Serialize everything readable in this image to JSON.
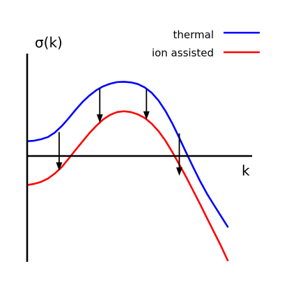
{
  "chart_data": {
    "type": "line",
    "title": "",
    "xlabel": "k",
    "ylabel": "σ(k)",
    "grid": false,
    "legend_position": "top-right",
    "colors": {
      "axis": "#000000",
      "thermal": "#0000ff",
      "ion_assisted": "#ff0000",
      "arrow": "#000000"
    },
    "x": [
      0.0,
      0.4,
      0.8,
      1.2,
      1.6,
      2.0,
      2.4,
      2.8,
      3.2,
      3.6,
      4.0,
      4.4,
      4.8,
      5.2,
      5.6,
      6.0,
      6.4,
      6.8,
      7.2,
      7.6,
      8.0,
      8.4,
      8.8,
      9.2,
      9.6,
      10.0,
      10.4,
      10.8,
      11.2,
      11.6
    ],
    "series": [
      {
        "name": "thermal",
        "values": [
          0.0,
          0.02,
          0.07,
          0.15,
          0.31,
          0.54,
          0.82,
          1.12,
          1.4,
          1.63,
          1.82,
          1.96,
          2.05,
          2.11,
          2.12,
          2.1,
          2.04,
          1.92,
          1.73,
          1.45,
          1.08,
          0.63,
          0.12,
          -0.41,
          -0.92,
          -1.42,
          -1.87,
          -2.27,
          -2.66,
          -3.05
        ],
        "color": "#0000ff"
      },
      {
        "name": "ion assisted",
        "values": [
          -1.56,
          -1.52,
          -1.45,
          -1.33,
          -1.15,
          -0.92,
          -0.62,
          -0.31,
          -0.01,
          0.29,
          0.55,
          0.78,
          0.94,
          1.04,
          1.07,
          1.04,
          0.96,
          0.83,
          0.63,
          0.36,
          0.02,
          -0.39,
          -0.83,
          -1.28,
          -1.76,
          -2.24,
          -2.74,
          -3.23,
          -3.72,
          -4.25
        ],
        "color": "#ff0000"
      }
    ],
    "arrows": [
      {
        "x": 1.85,
        "y_start": 0.33,
        "y_end": -1.05
      },
      {
        "x": 4.2,
        "y_start": 1.89,
        "y_end": 0.66
      },
      {
        "x": 6.9,
        "y_start": 1.86,
        "y_end": 0.77
      },
      {
        "x": 8.8,
        "y_start": 0.28,
        "y_end": -1.23
      }
    ],
    "xlim": [
      0,
      11.6
    ],
    "ylim": [
      -4.3,
      3.1
    ]
  },
  "legend": {
    "thermal": "thermal",
    "ion_assisted": "ion assisted"
  }
}
